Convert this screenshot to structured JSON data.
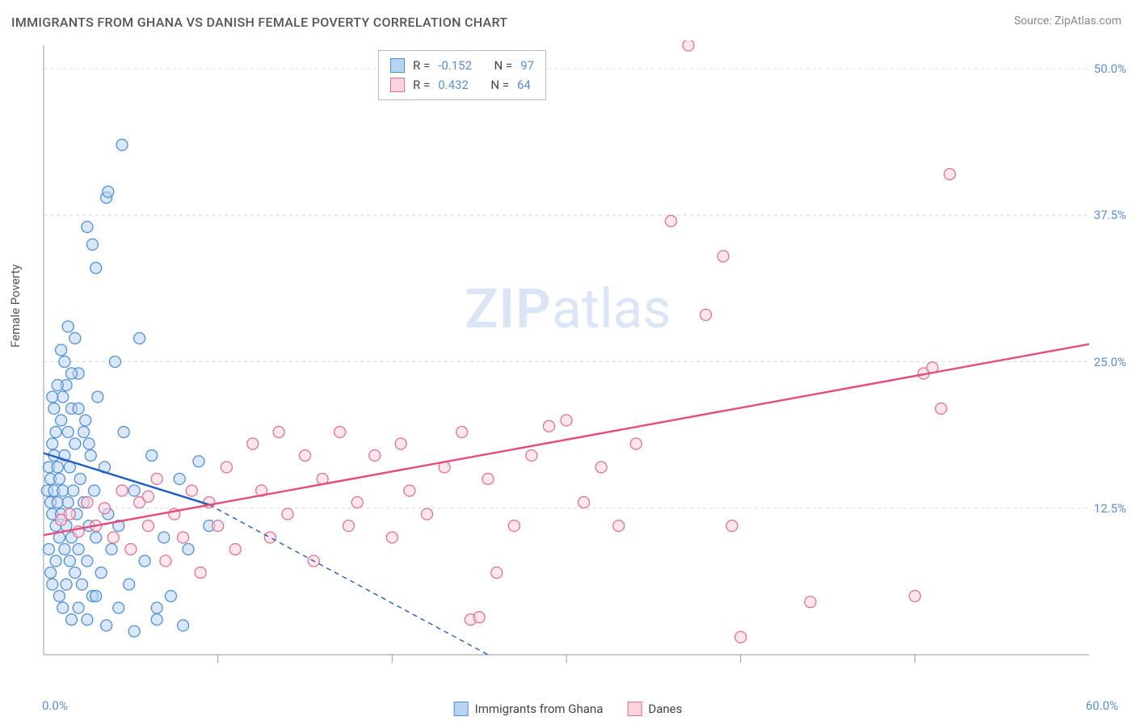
{
  "title": "IMMIGRANTS FROM GHANA VS DANISH FEMALE POVERTY CORRELATION CHART",
  "source": "Source: ZipAtlas.com",
  "watermark_zip": "ZIP",
  "watermark_atlas": "atlas",
  "ylabel": "Female Poverty",
  "chart": {
    "type": "scatter",
    "xlim": [
      0,
      60
    ],
    "ylim": [
      0,
      52
    ],
    "xtick_min_label": "0.0%",
    "xtick_max_label": "60.0%",
    "xticks_major": [
      10,
      20,
      30,
      40,
      50
    ],
    "yticks": [
      12.5,
      25.0,
      37.5,
      50.0
    ],
    "ytick_labels": [
      "12.5%",
      "25.0%",
      "37.5%",
      "50.0%"
    ],
    "grid_color": "#d8d8d8",
    "axis_color": "#999999",
    "background_color": "#ffffff",
    "marker_radius": 7,
    "marker_stroke_width": 1.3,
    "line_width": 2.4
  },
  "series": [
    {
      "name": "Immigrants from Ghana",
      "fill": "#b9d4f0",
      "stroke": "#4e8fd8",
      "line_color": "#1f5fbf",
      "R": "-0.152",
      "N": "97",
      "trend": {
        "x1": 0,
        "y1": 17.2,
        "x2": 9.5,
        "y2": 12.8,
        "dash_x2": 25.5,
        "dash_y2": 0
      },
      "points": [
        [
          0.2,
          14
        ],
        [
          0.3,
          16
        ],
        [
          0.4,
          13
        ],
        [
          0.4,
          15
        ],
        [
          0.5,
          12
        ],
        [
          0.5,
          18
        ],
        [
          0.6,
          14
        ],
        [
          0.6,
          17
        ],
        [
          0.7,
          11
        ],
        [
          0.7,
          19
        ],
        [
          0.8,
          13
        ],
        [
          0.8,
          16
        ],
        [
          0.9,
          10
        ],
        [
          0.9,
          15
        ],
        [
          1.0,
          12
        ],
        [
          1.0,
          20
        ],
        [
          1.1,
          14
        ],
        [
          1.1,
          22
        ],
        [
          1.2,
          9
        ],
        [
          1.2,
          17
        ],
        [
          1.3,
          11
        ],
        [
          1.3,
          23
        ],
        [
          1.4,
          13
        ],
        [
          1.4,
          19
        ],
        [
          1.5,
          8
        ],
        [
          1.5,
          16
        ],
        [
          1.6,
          10
        ],
        [
          1.6,
          21
        ],
        [
          1.7,
          14
        ],
        [
          1.8,
          7
        ],
        [
          1.8,
          18
        ],
        [
          1.9,
          12
        ],
        [
          2.0,
          9
        ],
        [
          2.0,
          24
        ],
        [
          2.1,
          15
        ],
        [
          2.2,
          6
        ],
        [
          2.3,
          13
        ],
        [
          2.4,
          20
        ],
        [
          2.5,
          8
        ],
        [
          2.6,
          11
        ],
        [
          2.7,
          17
        ],
        [
          2.8,
          5
        ],
        [
          2.9,
          14
        ],
        [
          3.0,
          10
        ],
        [
          3.1,
          22
        ],
        [
          3.3,
          7
        ],
        [
          3.5,
          16
        ],
        [
          3.7,
          12
        ],
        [
          3.9,
          9
        ],
        [
          4.1,
          25
        ],
        [
          4.3,
          11
        ],
        [
          4.6,
          19
        ],
        [
          4.9,
          6
        ],
        [
          5.2,
          14
        ],
        [
          5.5,
          27
        ],
        [
          5.8,
          8
        ],
        [
          6.2,
          17
        ],
        [
          6.5,
          4
        ],
        [
          6.9,
          10
        ],
        [
          7.3,
          5
        ],
        [
          7.8,
          15
        ],
        [
          8.3,
          9
        ],
        [
          8.9,
          16.5
        ],
        [
          9.5,
          11
        ],
        [
          2.8,
          35
        ],
        [
          2.5,
          36.5
        ],
        [
          3.6,
          39
        ],
        [
          3.7,
          39.5
        ],
        [
          3.0,
          33
        ],
        [
          4.5,
          43.5
        ],
        [
          0.5,
          22
        ],
        [
          0.6,
          21
        ],
        [
          0.8,
          23
        ],
        [
          1.0,
          26
        ],
        [
          1.2,
          25
        ],
        [
          1.4,
          28
        ],
        [
          1.6,
          24
        ],
        [
          1.8,
          27
        ],
        [
          2.0,
          21
        ],
        [
          2.3,
          19
        ],
        [
          2.6,
          18
        ],
        [
          0.3,
          9
        ],
        [
          0.4,
          7
        ],
        [
          0.5,
          6
        ],
        [
          0.7,
          8
        ],
        [
          0.9,
          5
        ],
        [
          1.1,
          4
        ],
        [
          1.3,
          6
        ],
        [
          1.6,
          3
        ],
        [
          2.0,
          4
        ],
        [
          2.5,
          3
        ],
        [
          3.0,
          5
        ],
        [
          3.6,
          2.5
        ],
        [
          4.3,
          4
        ],
        [
          5.2,
          2
        ],
        [
          6.5,
          3
        ],
        [
          8.0,
          2.5
        ]
      ]
    },
    {
      "name": "Danes",
      "fill": "#fbd4de",
      "stroke": "#e07090",
      "line_color": "#e64b7a",
      "R": "0.432",
      "N": "64",
      "trend": {
        "x1": 0,
        "y1": 10.2,
        "x2": 60,
        "y2": 26.5
      },
      "points": [
        [
          1.5,
          12
        ],
        [
          2.5,
          13
        ],
        [
          3,
          11
        ],
        [
          4,
          10
        ],
        [
          4.5,
          14
        ],
        [
          5,
          9
        ],
        [
          5.5,
          13
        ],
        [
          6,
          11
        ],
        [
          6.5,
          15
        ],
        [
          7,
          8
        ],
        [
          7.5,
          12
        ],
        [
          8,
          10
        ],
        [
          8.5,
          14
        ],
        [
          9,
          7
        ],
        [
          9.5,
          13
        ],
        [
          10,
          11
        ],
        [
          10.5,
          16
        ],
        [
          11,
          9
        ],
        [
          12,
          18
        ],
        [
          12.5,
          14
        ],
        [
          13,
          10
        ],
        [
          13.5,
          19
        ],
        [
          14,
          12
        ],
        [
          15,
          17
        ],
        [
          15.5,
          8
        ],
        [
          16,
          15
        ],
        [
          17,
          19
        ],
        [
          17.5,
          11
        ],
        [
          18,
          13
        ],
        [
          19,
          17
        ],
        [
          20,
          10
        ],
        [
          20.5,
          18
        ],
        [
          21,
          14
        ],
        [
          22,
          12
        ],
        [
          23,
          16
        ],
        [
          24,
          19
        ],
        [
          24.5,
          3
        ],
        [
          25,
          3.2
        ],
        [
          25.5,
          15
        ],
        [
          26,
          7
        ],
        [
          27,
          11
        ],
        [
          28,
          17
        ],
        [
          29,
          19.5
        ],
        [
          30,
          20
        ],
        [
          31,
          13
        ],
        [
          32,
          16
        ],
        [
          33,
          11
        ],
        [
          34,
          18
        ],
        [
          36,
          37
        ],
        [
          37,
          52
        ],
        [
          38,
          29
        ],
        [
          39,
          34
        ],
        [
          39.5,
          11
        ],
        [
          40,
          1.5
        ],
        [
          44,
          4.5
        ],
        [
          50,
          5
        ],
        [
          50.5,
          24
        ],
        [
          51,
          24.5
        ],
        [
          51.5,
          21
        ],
        [
          52,
          41
        ],
        [
          1,
          11.5
        ],
        [
          2,
          10.5
        ],
        [
          3.5,
          12.5
        ],
        [
          6,
          13.5
        ]
      ]
    }
  ],
  "legend": {
    "item1": "Immigrants from Ghana",
    "item2": "Danes"
  },
  "stats_labels": {
    "R": "R =",
    "N": "N ="
  }
}
